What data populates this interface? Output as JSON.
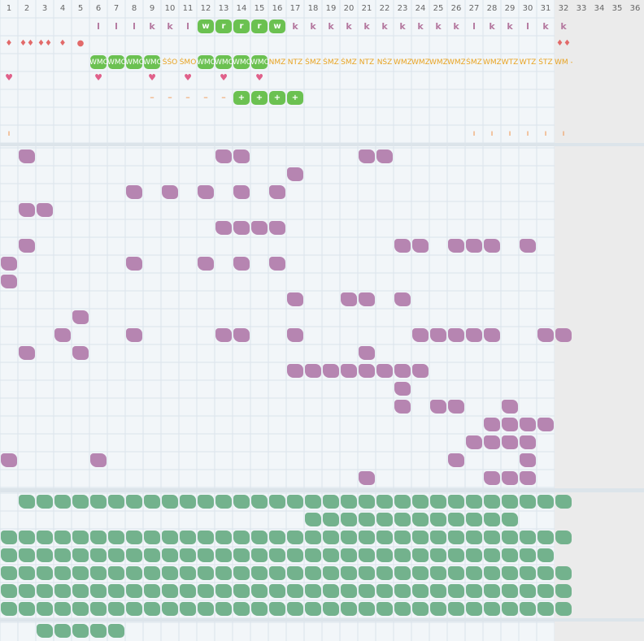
{
  "columns": [
    "1",
    "2",
    "3",
    "4",
    "5",
    "6",
    "7",
    "8",
    "9",
    "10",
    "11",
    "12",
    "13",
    "14",
    "15",
    "16",
    "17",
    "18",
    "19",
    "20",
    "21",
    "22",
    "23",
    "24",
    "25",
    "26",
    "27",
    "28",
    "29",
    "30",
    "31",
    "32",
    "33",
    "34",
    "35",
    "36"
  ],
  "row1_letters": [
    {
      "c": 6,
      "t": "l"
    },
    {
      "c": 7,
      "t": "l"
    },
    {
      "c": 8,
      "t": "l"
    },
    {
      "c": 9,
      "t": "k"
    },
    {
      "c": 10,
      "t": "k"
    },
    {
      "c": 11,
      "t": "l"
    },
    {
      "c": 12,
      "t": "w",
      "hl": true
    },
    {
      "c": 13,
      "t": "r",
      "hl": true
    },
    {
      "c": 14,
      "t": "r",
      "hl": true
    },
    {
      "c": 15,
      "t": "r",
      "hl": true
    },
    {
      "c": 16,
      "t": "w",
      "hl": true
    },
    {
      "c": 17,
      "t": "k"
    },
    {
      "c": 18,
      "t": "k"
    },
    {
      "c": 19,
      "t": "k"
    },
    {
      "c": 20,
      "t": "k"
    },
    {
      "c": 21,
      "t": "k"
    },
    {
      "c": 22,
      "t": "k"
    },
    {
      "c": 23,
      "t": "k"
    },
    {
      "c": 24,
      "t": "k"
    },
    {
      "c": 25,
      "t": "k"
    },
    {
      "c": 26,
      "t": "k"
    },
    {
      "c": 27,
      "t": "l"
    },
    {
      "c": 28,
      "t": "k"
    },
    {
      "c": 29,
      "t": "k"
    },
    {
      "c": 30,
      "t": "l"
    },
    {
      "c": 31,
      "t": "k"
    },
    {
      "c": 32,
      "t": "k"
    }
  ],
  "row2_symbols": [
    {
      "c": 1,
      "t": "♦"
    },
    {
      "c": 2,
      "t": "♦♦"
    },
    {
      "c": 3,
      "t": "♦♦"
    },
    {
      "c": 4,
      "t": "♦"
    },
    {
      "c": 5,
      "t": "●"
    },
    {
      "c": 32,
      "t": "♦♦"
    }
  ],
  "row3_codes": [
    {
      "c": 6,
      "t": "WMO",
      "hl": true
    },
    {
      "c": 7,
      "t": "WMO",
      "hl": true
    },
    {
      "c": 8,
      "t": "WMO",
      "hl": true
    },
    {
      "c": 9,
      "t": "WMO",
      "hl": true
    },
    {
      "c": 10,
      "t": "ŚŚO"
    },
    {
      "c": 11,
      "t": "ŚMO"
    },
    {
      "c": 12,
      "t": "WMO",
      "hl": true
    },
    {
      "c": 13,
      "t": "WMO",
      "hl": true
    },
    {
      "c": 14,
      "t": "WMO",
      "hl": true
    },
    {
      "c": 15,
      "t": "WMO",
      "hl": true
    },
    {
      "c": 16,
      "t": "NMZ"
    },
    {
      "c": 17,
      "t": "NTZ"
    },
    {
      "c": 18,
      "t": "ŚMZ"
    },
    {
      "c": 19,
      "t": "ŚMZ"
    },
    {
      "c": 20,
      "t": "ŚMZ"
    },
    {
      "c": 21,
      "t": "NTZ"
    },
    {
      "c": 22,
      "t": "NŚZ"
    },
    {
      "c": 23,
      "t": "WMZ"
    },
    {
      "c": 24,
      "t": "WMZ"
    },
    {
      "c": 25,
      "t": "WMZ"
    },
    {
      "c": 26,
      "t": "WMZ"
    },
    {
      "c": 27,
      "t": "ŚMZ"
    },
    {
      "c": 28,
      "t": "WMZ"
    },
    {
      "c": 29,
      "t": "WTZ"
    },
    {
      "c": 30,
      "t": "WTZ"
    },
    {
      "c": 31,
      "t": "ŚTZ"
    },
    {
      "c": 32,
      "t": "WM -"
    }
  ],
  "row4_hearts": [
    1,
    6,
    9,
    11,
    13,
    15
  ],
  "row5_dashes": [
    9,
    10,
    11,
    12,
    13
  ],
  "row5_plus": [
    14,
    15,
    16,
    17
  ],
  "row7_ticks": [
    1,
    27,
    28,
    29,
    30,
    31,
    32
  ],
  "purple_rows": [
    [
      2,
      13,
      14,
      21,
      22
    ],
    [
      17
    ],
    [
      8,
      10,
      12,
      14,
      16
    ],
    [
      2,
      3
    ],
    [
      13,
      14,
      15,
      16
    ],
    [
      2,
      23,
      24,
      26,
      27,
      28,
      30
    ],
    [
      1,
      8,
      12,
      14,
      16
    ],
    [
      1
    ],
    [
      17,
      20,
      21,
      23
    ],
    [
      5
    ],
    [
      4,
      8,
      13,
      14,
      17,
      24,
      25,
      26,
      27,
      28,
      31,
      32
    ],
    [
      2,
      5,
      21
    ],
    [
      17,
      18,
      19,
      20,
      21,
      22,
      23,
      24
    ],
    [
      23
    ],
    [
      23,
      25,
      26,
      29
    ],
    [
      28,
      29,
      30,
      31
    ],
    [
      27,
      28,
      29,
      30
    ],
    [
      1,
      6,
      26,
      30
    ],
    [
      21,
      28,
      29,
      30
    ]
  ],
  "green_rows": [
    {
      "from": 2,
      "to": 32
    },
    {
      "from": 18,
      "to": 29
    },
    {
      "from": 1,
      "to": 32
    },
    {
      "from": 1,
      "to": 31
    },
    {
      "from": 1,
      "to": 32
    },
    {
      "from": 1,
      "to": 32
    },
    {
      "from": 1,
      "to": 32
    }
  ],
  "green_last": {
    "from": 3,
    "to": 7
  },
  "colors": {
    "purple": "#b685b1",
    "green": "#73b28d",
    "badge": "#6bc151",
    "orange": "#e8a321",
    "grid": "#dbe4ec"
  }
}
